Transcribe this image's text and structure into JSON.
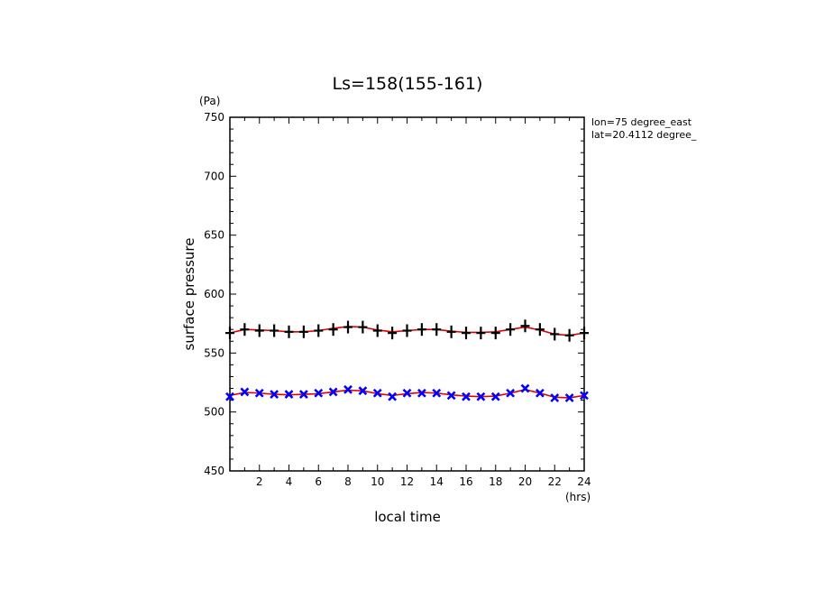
{
  "chart_data": {
    "type": "line",
    "title": "Ls=158(155-161)",
    "xlabel": "local time",
    "ylabel": "surface pressure",
    "x_unit": "(hrs)",
    "y_unit": "(Pa)",
    "xlim": [
      0,
      24
    ],
    "ylim": [
      450,
      750
    ],
    "x_ticks": [
      2,
      4,
      6,
      8,
      10,
      12,
      14,
      16,
      18,
      20,
      22,
      24
    ],
    "y_ticks": [
      450,
      500,
      550,
      600,
      650,
      700,
      750
    ],
    "annotations": [
      "lon=75 degree_east",
      "lat=20.4112 degree_"
    ],
    "grid": false,
    "x": [
      0,
      1,
      2,
      3,
      4,
      5,
      6,
      7,
      8,
      9,
      10,
      11,
      12,
      13,
      14,
      15,
      16,
      17,
      18,
      19,
      20,
      21,
      22,
      23,
      24
    ],
    "series": [
      {
        "marker": "plus",
        "color": "#000000",
        "line_color": "#e00000",
        "values": [
          567,
          570,
          569,
          569,
          568,
          568,
          569,
          570,
          572,
          572,
          569,
          567,
          569,
          570,
          570,
          568,
          567,
          567,
          567,
          570,
          573,
          570,
          566,
          565,
          567
        ],
        "fit": [
          567,
          570,
          569.5,
          569,
          568,
          568,
          569,
          571,
          572.5,
          572,
          569.5,
          568,
          569,
          570,
          570,
          568.5,
          567.5,
          567.5,
          568,
          570,
          572,
          569.5,
          566,
          565,
          567
        ]
      },
      {
        "marker": "x",
        "color": "#0000ff",
        "line_color": "#e00000",
        "values": [
          513,
          517,
          516,
          515,
          515,
          515,
          516,
          517,
          519,
          518,
          516,
          513,
          516,
          516,
          516,
          514,
          513,
          513,
          513,
          516,
          520,
          516,
          512,
          512,
          514
        ],
        "fit": [
          514,
          516.5,
          516,
          515,
          514.5,
          515,
          515.5,
          517,
          518.5,
          518,
          515.5,
          514,
          515.5,
          516.5,
          516,
          514.5,
          513.5,
          513,
          513.5,
          516,
          519,
          516,
          512.5,
          512,
          514
        ]
      }
    ]
  }
}
